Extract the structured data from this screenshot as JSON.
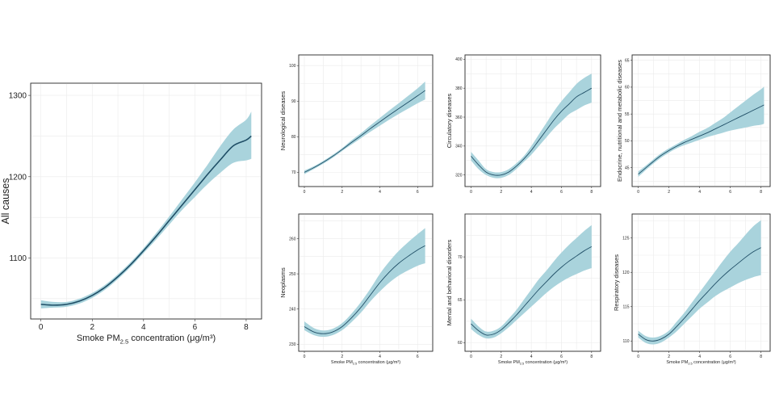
{
  "colors": {
    "band": "#a9d3dc",
    "line": "#1f4e66",
    "grid": "#ebebeb",
    "border": "#333333"
  },
  "chart_data": [
    {
      "id": "all-causes",
      "type": "line",
      "title": "",
      "ylabel": "All causes",
      "xlabel_main": "Smoke PM",
      "xlabel_sub": "2.5",
      "xlabel_tail": " concentration (μg/m³)",
      "xlim": [
        -0.4,
        8.6
      ],
      "ylim": [
        1025,
        1315
      ],
      "xticks": [
        0,
        2,
        4,
        6,
        8
      ],
      "yticks": [
        1100,
        1200,
        1300
      ],
      "x": [
        0,
        0.5,
        1,
        1.5,
        2,
        2.5,
        3,
        3.5,
        4,
        4.5,
        5,
        5.5,
        6,
        6.5,
        7,
        7.5,
        8,
        8.2
      ],
      "y": [
        1043,
        1042,
        1043,
        1047,
        1054,
        1064,
        1077,
        1092,
        1109,
        1127,
        1146,
        1165,
        1184,
        1203,
        1221,
        1238,
        1245,
        1250
      ],
      "lower": [
        1038,
        1039,
        1040,
        1044,
        1051,
        1061,
        1074,
        1089,
        1106,
        1123,
        1141,
        1159,
        1175,
        1191,
        1205,
        1217,
        1220,
        1222
      ],
      "upper": [
        1048,
        1046,
        1046,
        1050,
        1057,
        1067,
        1080,
        1095,
        1112,
        1131,
        1151,
        1172,
        1193,
        1215,
        1238,
        1258,
        1270,
        1280
      ]
    },
    {
      "id": "neurological",
      "type": "line",
      "ylabel": "Neurological diseases",
      "xlabel_main": "",
      "xlabel_sub": "",
      "xlabel_tail": "",
      "xlim": [
        -0.3,
        6.8
      ],
      "ylim": [
        66,
        103
      ],
      "xticks": [
        0,
        2,
        4,
        6
      ],
      "yticks": [
        70,
        80,
        90,
        100
      ],
      "x": [
        0,
        0.5,
        1,
        1.5,
        2,
        2.5,
        3,
        3.5,
        4,
        4.5,
        5,
        5.5,
        6,
        6.4
      ],
      "y": [
        70,
        71.3,
        72.8,
        74.5,
        76.4,
        78.4,
        80.3,
        82.3,
        84.2,
        86.1,
        87.9,
        89.7,
        91.5,
        93
      ],
      "lower": [
        69.5,
        70.9,
        72.4,
        74.1,
        76,
        77.8,
        79.6,
        81.4,
        83.1,
        84.8,
        86.4,
        87.9,
        89.4,
        90.5
      ],
      "upper": [
        70.5,
        71.7,
        73.2,
        74.9,
        76.8,
        79,
        81,
        83.2,
        85.3,
        87.4,
        89.4,
        91.5,
        93.6,
        95.5
      ]
    },
    {
      "id": "circulatory",
      "type": "line",
      "ylabel": "Circulatory diseases",
      "xlabel_main": "",
      "xlabel_sub": "",
      "xlabel_tail": "",
      "xlim": [
        -0.4,
        8.6
      ],
      "ylim": [
        312,
        403
      ],
      "xticks": [
        0,
        2,
        4,
        6,
        8
      ],
      "yticks": [
        320,
        340,
        360,
        380,
        400
      ],
      "x": [
        0,
        0.5,
        1,
        1.5,
        2,
        2.5,
        3,
        3.5,
        4,
        4.5,
        5,
        5.5,
        6,
        6.5,
        7,
        7.5,
        8
      ],
      "y": [
        333,
        327,
        322,
        320,
        320,
        322,
        326,
        331,
        337,
        344,
        351,
        358,
        364,
        369,
        374,
        377,
        380
      ],
      "lower": [
        330,
        324,
        320,
        318,
        318,
        320,
        324,
        329,
        334,
        340,
        346,
        352,
        357,
        362,
        365,
        368,
        370
      ],
      "upper": [
        336,
        330,
        324,
        322,
        322,
        324,
        328,
        333,
        340,
        348,
        356,
        364,
        371,
        377,
        383,
        387,
        390
      ]
    },
    {
      "id": "endocrine",
      "type": "line",
      "ylabel": "Endocrine, nutritional and metabolic diseases",
      "xlabel_main": "",
      "xlabel_sub": "",
      "xlabel_tail": "",
      "xlim": [
        -0.4,
        8.6
      ],
      "ylim": [
        41.5,
        66
      ],
      "xticks": [
        0,
        2,
        4,
        6,
        8
      ],
      "yticks": [
        45,
        50,
        55,
        60,
        65
      ],
      "x": [
        0,
        0.5,
        1,
        1.5,
        2,
        2.5,
        3,
        3.5,
        4,
        4.5,
        5,
        5.5,
        6,
        6.5,
        7,
        7.5,
        8,
        8.2
      ],
      "y": [
        43.8,
        45,
        46.2,
        47.3,
        48.2,
        49,
        49.7,
        50.3,
        50.9,
        51.5,
        52.2,
        52.9,
        53.6,
        54.3,
        55,
        55.7,
        56.4,
        56.7
      ],
      "lower": [
        43.3,
        44.6,
        45.8,
        46.9,
        47.8,
        48.6,
        49.2,
        49.7,
        50.2,
        50.7,
        51.1,
        51.5,
        51.9,
        52.2,
        52.5,
        52.8,
        53,
        53.2
      ],
      "upper": [
        44.3,
        45.4,
        46.6,
        47.7,
        48.6,
        49.4,
        50.2,
        50.9,
        51.7,
        52.4,
        53.3,
        54.2,
        55.3,
        56.4,
        57.5,
        58.6,
        59.6,
        60.1
      ]
    },
    {
      "id": "neoplasms",
      "type": "line",
      "ylabel": "Neoplasms",
      "xlabel_main": "Smoke PM",
      "xlabel_sub": "2.5",
      "xlabel_tail": " concentration (μg/m³)",
      "xlim": [
        -0.3,
        6.8
      ],
      "ylim": [
        228,
        267
      ],
      "xticks": [
        0,
        2,
        4,
        6
      ],
      "yticks": [
        230,
        240,
        250,
        260
      ],
      "x": [
        0,
        0.5,
        1,
        1.5,
        2,
        2.5,
        3,
        3.5,
        4,
        4.5,
        5,
        5.5,
        6,
        6.4
      ],
      "y": [
        235,
        233.5,
        233,
        233.5,
        235,
        237.5,
        240.5,
        244,
        247.5,
        250.5,
        253,
        255,
        256.8,
        258
      ],
      "lower": [
        234,
        232.6,
        232.1,
        232.6,
        234,
        236.3,
        239,
        242.2,
        245,
        247.5,
        249.5,
        251,
        252.3,
        253
      ],
      "upper": [
        236.5,
        234.6,
        233.9,
        234.4,
        236,
        238.7,
        242,
        245.8,
        250,
        253.5,
        256.5,
        259,
        261.3,
        263
      ]
    },
    {
      "id": "mental",
      "type": "line",
      "ylabel": "Mental and behavioral disorders",
      "xlabel_main": "Smoke PM",
      "xlabel_sub": "2.5",
      "xlabel_tail": " concentration (μg/m³)",
      "xlim": [
        -0.4,
        8.6
      ],
      "ylim": [
        59,
        75
      ],
      "xticks": [
        0,
        2,
        4,
        6,
        8
      ],
      "yticks": [
        60,
        65,
        70
      ],
      "x": [
        0,
        0.5,
        1,
        1.5,
        2,
        2.5,
        3,
        3.5,
        4,
        4.5,
        5,
        5.5,
        6,
        6.5,
        7,
        7.5,
        8
      ],
      "y": [
        62.2,
        61.4,
        60.9,
        61,
        61.5,
        62.3,
        63.2,
        64.2,
        65.2,
        66.2,
        67.1,
        68,
        68.8,
        69.5,
        70.1,
        70.7,
        71.2
      ],
      "lower": [
        61.6,
        60.9,
        60.5,
        60.6,
        61.1,
        61.8,
        62.6,
        63.4,
        64.2,
        65,
        65.8,
        66.5,
        67.1,
        67.6,
        68,
        68.4,
        68.7
      ],
      "upper": [
        62.8,
        61.9,
        61.3,
        61.4,
        61.9,
        62.8,
        63.8,
        65,
        66.2,
        67.4,
        68.4,
        69.5,
        70.5,
        71.4,
        72.2,
        73,
        73.7
      ]
    },
    {
      "id": "respiratory",
      "type": "line",
      "ylabel": "Respiratory diseases",
      "xlabel_main": "Smoke PM",
      "xlabel_sub": "2.5",
      "xlabel_tail": " concentration (μg/m³)",
      "xlim": [
        -0.4,
        8.6
      ],
      "ylim": [
        108.5,
        128.5
      ],
      "xticks": [
        0,
        2,
        4,
        6,
        8
      ],
      "yticks": [
        110,
        115,
        120,
        125
      ],
      "x": [
        0,
        0.5,
        1,
        1.5,
        2,
        2.5,
        3,
        3.5,
        4,
        4.5,
        5,
        5.5,
        6,
        6.5,
        7,
        7.5,
        8
      ],
      "y": [
        111,
        110.2,
        110,
        110.3,
        111,
        112.1,
        113.3,
        114.6,
        115.9,
        117.1,
        118.3,
        119.4,
        120.4,
        121.3,
        122.2,
        123,
        123.6
      ],
      "lower": [
        110.5,
        109.7,
        109.5,
        109.8,
        110.5,
        111.4,
        112.5,
        113.6,
        114.7,
        115.6,
        116.5,
        117.2,
        117.8,
        118.4,
        118.9,
        119.3,
        119.6
      ],
      "upper": [
        111.5,
        110.7,
        110.5,
        110.8,
        111.5,
        112.8,
        114.1,
        115.6,
        117.1,
        118.6,
        120.1,
        121.6,
        123,
        124.2,
        125.5,
        126.7,
        127.6
      ]
    }
  ]
}
